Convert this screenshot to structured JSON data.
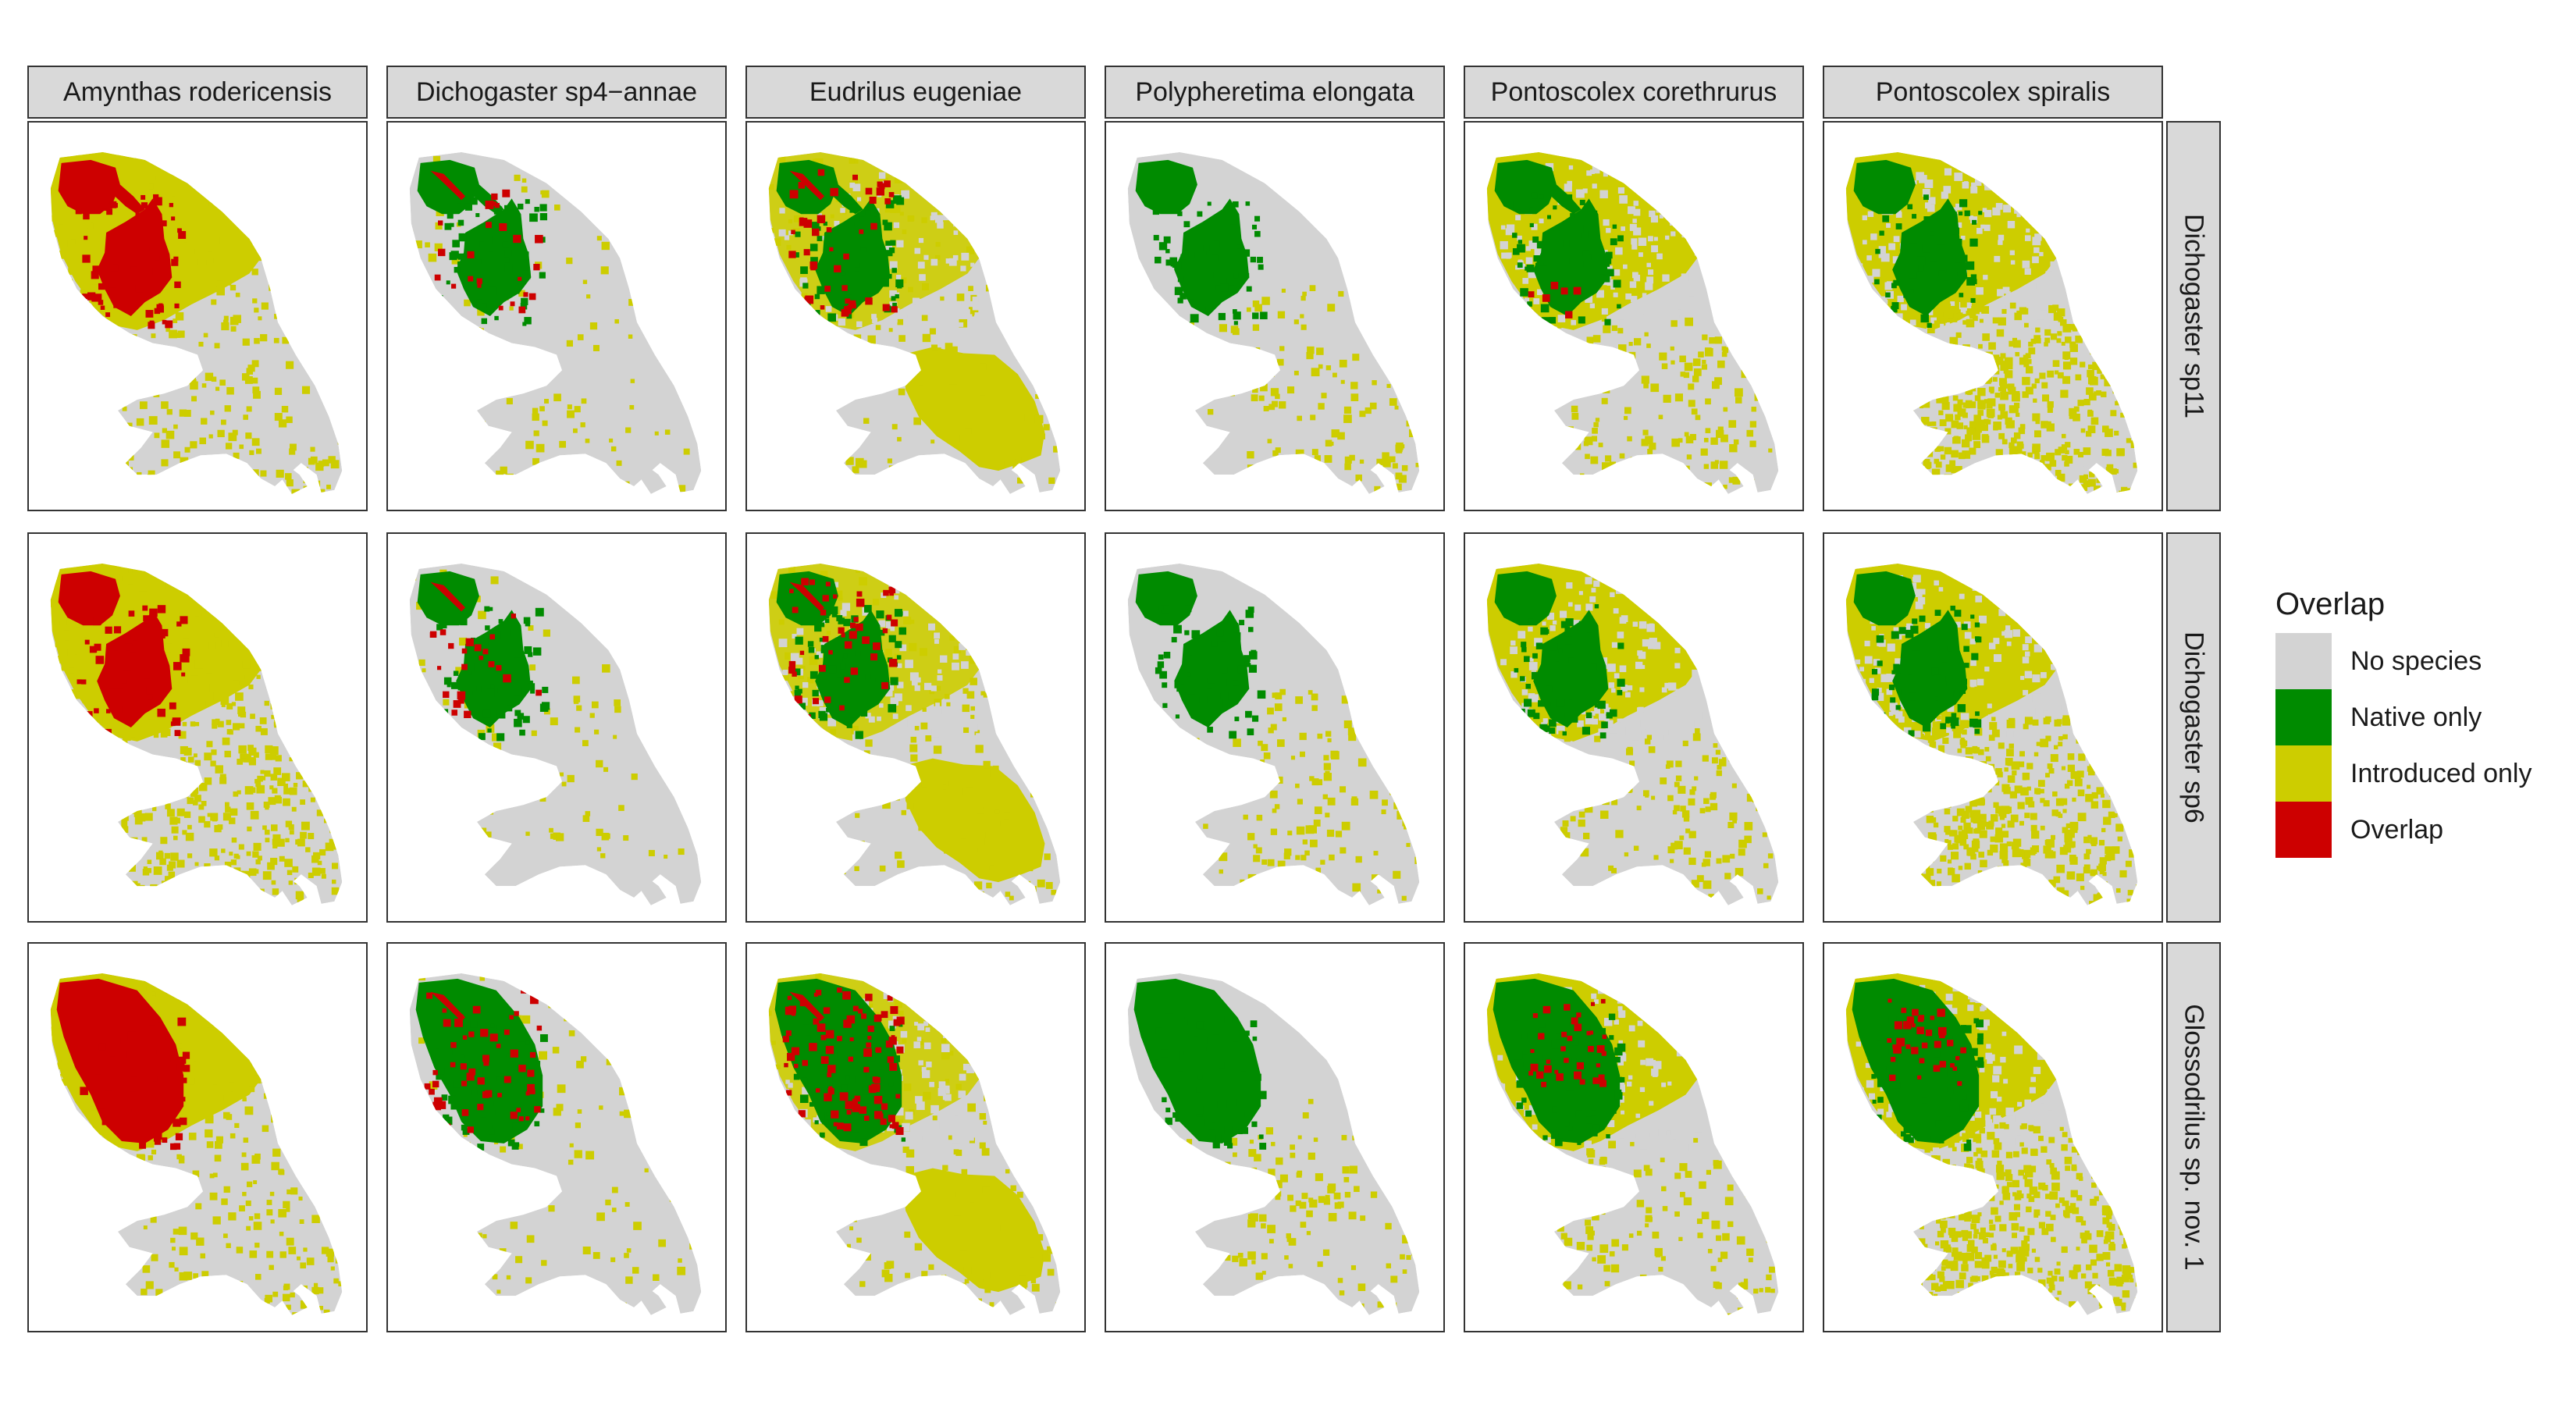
{
  "columns": [
    "Amynthas rodericensis",
    "Dichogaster sp4−annae",
    "Eudrilus eugeniae",
    "Polypheretima elongata",
    "Pontoscolex corethrurus",
    "Pontoscolex spiralis"
  ],
  "rows": [
    "Dichogaster sp11",
    "Dichogaster sp6",
    "Glossodrilus sp. nov. 1"
  ],
  "legend": {
    "title": "Overlap",
    "items": [
      {
        "label": "No species",
        "color": "#d3d3d3"
      },
      {
        "label": "Native only",
        "color": "#008b00"
      },
      {
        "label": "Introduced only",
        "color": "#cdcd00"
      },
      {
        "label": "Overlap",
        "color": "#cd0000"
      }
    ]
  }
}
